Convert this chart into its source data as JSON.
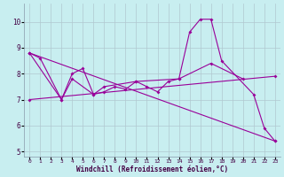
{
  "xlabel": "Windchill (Refroidissement éolien,°C)",
  "bg_color": "#c8eef0",
  "line_color": "#990099",
  "grid_color": "#b0c8d0",
  "xlim": [
    -0.5,
    23.5
  ],
  "ylim": [
    4.8,
    10.7
  ],
  "xticks": [
    0,
    1,
    2,
    3,
    4,
    5,
    6,
    7,
    8,
    9,
    10,
    11,
    12,
    13,
    14,
    15,
    16,
    17,
    18,
    19,
    20,
    21,
    22,
    23
  ],
  "yticks": [
    5,
    6,
    7,
    8,
    9,
    10
  ],
  "series0": {
    "x": [
      0,
      1,
      3,
      4,
      5,
      6,
      7,
      8,
      9,
      10,
      11,
      12,
      13,
      14,
      15,
      16,
      17,
      18,
      21,
      22,
      23
    ],
    "y": [
      8.8,
      8.6,
      7.0,
      8.0,
      8.2,
      7.2,
      7.3,
      7.5,
      7.4,
      7.7,
      7.5,
      7.3,
      7.7,
      7.8,
      9.6,
      10.1,
      10.1,
      8.5,
      7.2,
      5.9,
      5.4
    ]
  },
  "series1": {
    "x": [
      0,
      3,
      4,
      6,
      7,
      10,
      14,
      17,
      20
    ],
    "y": [
      8.8,
      7.0,
      7.8,
      7.2,
      7.5,
      7.7,
      7.8,
      8.4,
      7.8
    ]
  },
  "series2": {
    "x": [
      0,
      23
    ],
    "y": [
      8.8,
      5.4
    ]
  },
  "series3": {
    "x": [
      0,
      23
    ],
    "y": [
      7.0,
      7.9
    ]
  }
}
